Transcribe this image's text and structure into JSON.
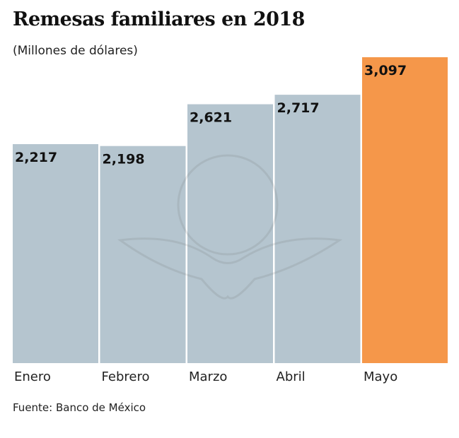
{
  "chart_data": {
    "type": "bar",
    "title": "Remesas familiares en 2018",
    "subtitle": "(Millones de dólares)",
    "categories": [
      "Enero",
      "Febrero",
      "Marzo",
      "Abril",
      "Mayo"
    ],
    "values": [
      2217,
      2198,
      2621,
      2717,
      3097
    ],
    "value_labels": [
      "2,217",
      "2,198",
      "2,621",
      "2,717",
      "3,097"
    ],
    "ylim": [
      0,
      3097
    ],
    "grid": false,
    "colors": {
      "default": "#b5c5cf",
      "highlight": "#f5974a",
      "highlight_category": "Mayo"
    },
    "source": "Fuente: Banco de México"
  }
}
